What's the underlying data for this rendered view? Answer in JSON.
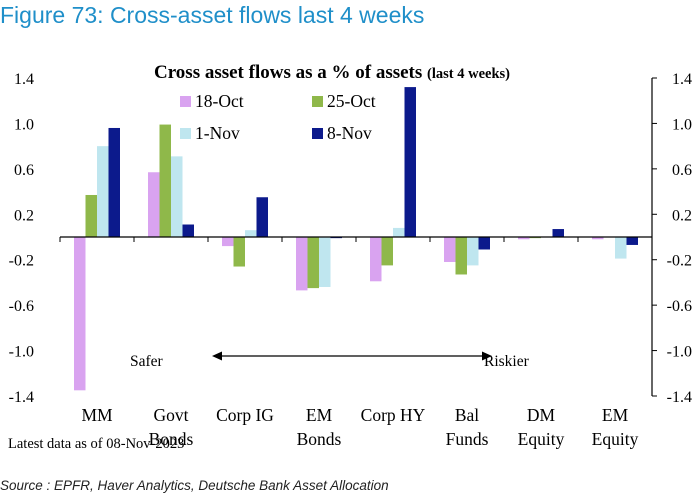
{
  "figure_title": "Figure 73: Cross-asset flows last 4 weeks",
  "source": "Source : EPFR, Haver Analytics, Deutsche Bank Asset Allocation",
  "colors": {
    "title_blue": "#1f8fc9",
    "18-Oct": "#d9a3f0",
    "25-Oct": "#8fb84a",
    "1-Nov": "#bfe6ef",
    "8-Nov": "#0c1a8c"
  },
  "chart_data": {
    "type": "bar",
    "title": "Cross asset flows as a % of assets",
    "title_suffix": "(last 4 weeks)",
    "categories": [
      [
        "MM"
      ],
      [
        "Govt",
        "Bonds"
      ],
      [
        "Corp IG"
      ],
      [
        "EM",
        "Bonds"
      ],
      [
        "Corp HY"
      ],
      [
        "Bal",
        "Funds"
      ],
      [
        "DM",
        "Equity"
      ],
      [
        "EM",
        "Equity"
      ]
    ],
    "series": [
      {
        "name": "18-Oct",
        "values": [
          -1.35,
          0.57,
          -0.08,
          -0.47,
          -0.39,
          -0.22,
          -0.02,
          -0.02
        ]
      },
      {
        "name": "25-Oct",
        "values": [
          0.37,
          0.99,
          -0.26,
          -0.45,
          -0.25,
          -0.33,
          -0.01,
          0.0
        ]
      },
      {
        "name": "1-Nov",
        "values": [
          0.8,
          0.71,
          0.06,
          -0.44,
          0.08,
          -0.25,
          0.0,
          -0.19
        ]
      },
      {
        "name": "8-Nov",
        "values": [
          0.96,
          0.11,
          0.35,
          -0.01,
          1.32,
          -0.11,
          0.07,
          -0.07
        ]
      }
    ],
    "ylim": [
      -1.4,
      1.4
    ],
    "yticks": [
      "1.4",
      "1.0",
      "0.6",
      "0.2",
      "-0.2",
      "-0.6",
      "-1.0",
      "-1.4"
    ],
    "ytick_values": [
      1.4,
      1.0,
      0.6,
      0.2,
      -0.2,
      -0.6,
      -1.0,
      -1.4
    ],
    "legend_position": "top-left",
    "grid": false,
    "annotations": {
      "left": "Safer",
      "right": "Riskier"
    },
    "note": "Latest data as of 08-Nov-2023"
  }
}
